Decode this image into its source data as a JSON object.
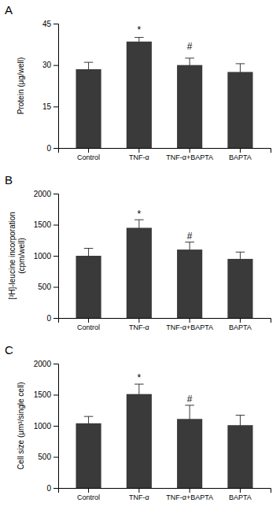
{
  "chart_data": [
    {
      "type": "bar",
      "title": "A",
      "categories": [
        "Control",
        "TNF-α",
        "TNF-α+BAPTA",
        "BAPTA"
      ],
      "values": [
        28.5,
        38.5,
        30.0,
        27.5
      ],
      "errors": [
        2.5,
        1.5,
        2.5,
        3.0
      ],
      "color": "#3a3a3a",
      "ylabel": "Protein (μg/well)",
      "ylim": [
        0,
        45
      ],
      "yticks": [
        0,
        15,
        30,
        45
      ],
      "grid": false,
      "annotations": [
        {
          "text": "*",
          "x": "TNF-α",
          "y": 41.5
        },
        {
          "text": "#",
          "x": "TNF-α+BAPTA",
          "y": 35.5
        }
      ]
    },
    {
      "type": "bar",
      "title": "B",
      "categories": [
        "Control",
        "TNF-α",
        "TNF-α+BAPTA",
        "BAPTA"
      ],
      "values": [
        1000,
        1450,
        1100,
        950
      ],
      "errors": [
        120,
        130,
        120,
        110
      ],
      "color": "#3a3a3a",
      "ylabel": "[³H]-leucine incorporation\n(cpm/well)",
      "ylim": [
        0,
        2000
      ],
      "yticks": [
        0,
        500,
        1000,
        1500,
        2000
      ],
      "grid": false,
      "annotations": [
        {
          "text": "*",
          "x": "TNF-α",
          "y": 1620
        },
        {
          "text": "#",
          "x": "TNF-α+BAPTA",
          "y": 1260
        }
      ]
    },
    {
      "type": "bar",
      "title": "C",
      "categories": [
        "Control",
        "TNF-α",
        "TNF-α+BAPTA",
        "BAPTA"
      ],
      "values": [
        1040,
        1510,
        1110,
        1010
      ],
      "errors": [
        110,
        160,
        220,
        160
      ],
      "color": "#3a3a3a",
      "ylabel": "Cell size (μm³/single cell)",
      "ylim": [
        0,
        2000
      ],
      "yticks": [
        0,
        500,
        1000,
        1500,
        2000
      ],
      "grid": false,
      "annotations": [
        {
          "text": "*",
          "x": "TNF-α",
          "y": 1720
        },
        {
          "text": "#",
          "x": "TNF-α+BAPTA",
          "y": 1380
        }
      ]
    }
  ]
}
